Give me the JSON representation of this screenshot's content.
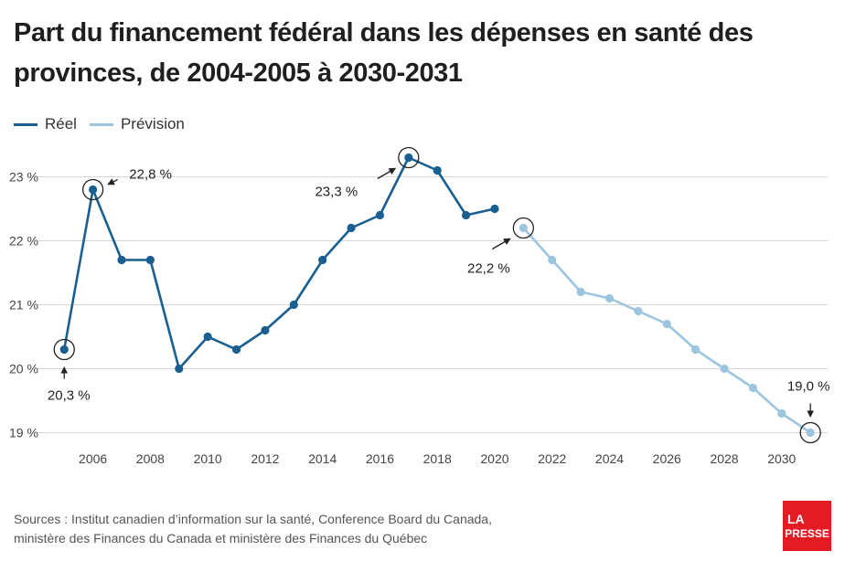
{
  "title": "Part du financement fédéral dans les dépenses en santé des provinces, de 2004-2005 à 2030-2031",
  "legend": [
    {
      "label": "Réel",
      "color": "#1a5f91"
    },
    {
      "label": "Prévision",
      "color": "#9cc5e0"
    }
  ],
  "sources": {
    "line1": "Sources : Institut canadien d’information sur la santé, Conference Board du Canada,",
    "line2": "ministère des Finances du Canada et ministère des Finances du Québec"
  },
  "logo": {
    "line1": "LA",
    "line2": "PRESSE",
    "color": "#e31b23"
  },
  "chart_data": {
    "type": "line",
    "x": [
      2005,
      2006,
      2007,
      2008,
      2009,
      2010,
      2011,
      2012,
      2013,
      2014,
      2015,
      2016,
      2017,
      2018,
      2019,
      2020,
      2021,
      2022,
      2023,
      2024,
      2025,
      2026,
      2027,
      2028,
      2029,
      2030,
      2031
    ],
    "series": [
      {
        "name": "Réel",
        "color": "#1a5f91",
        "x": [
          2005,
          2006,
          2007,
          2008,
          2009,
          2010,
          2011,
          2012,
          2013,
          2014,
          2015,
          2016,
          2017,
          2018,
          2019,
          2020
        ],
        "values": [
          20.3,
          22.8,
          21.7,
          21.7,
          20.0,
          20.5,
          20.3,
          20.6,
          21.0,
          21.7,
          22.2,
          22.4,
          23.3,
          23.1,
          22.4,
          22.5
        ]
      },
      {
        "name": "Prévision",
        "color": "#9cc5e0",
        "x": [
          2021,
          2022,
          2023,
          2024,
          2025,
          2026,
          2027,
          2028,
          2029,
          2030,
          2031
        ],
        "values": [
          22.2,
          21.7,
          21.2,
          21.1,
          20.9,
          20.7,
          20.3,
          20.0,
          19.7,
          19.3,
          19.0
        ]
      }
    ],
    "xticks": [
      2006,
      2008,
      2010,
      2012,
      2014,
      2016,
      2018,
      2020,
      2022,
      2024,
      2026,
      2028,
      2030
    ],
    "yticks": [
      19,
      20,
      21,
      22,
      23
    ],
    "ytick_labels": [
      "19 %",
      "20 %",
      "21 %",
      "22 %",
      "23 %"
    ],
    "xlim": [
      2004.1,
      2031.6
    ],
    "ylim": [
      18.85,
      23.55
    ],
    "grid": true,
    "legend_position": "top-left",
    "annotations": [
      {
        "x": 2005,
        "y": 20.3,
        "label": "20,3 %",
        "arrow": "up"
      },
      {
        "x": 2006,
        "y": 22.8,
        "label": "22,8 %",
        "arrow": "left"
      },
      {
        "x": 2017,
        "y": 23.3,
        "label": "23,3 %",
        "arrow": "up-right"
      },
      {
        "x": 2021,
        "y": 22.2,
        "label": "22,2 %",
        "arrow": "up-right"
      },
      {
        "x": 2031,
        "y": 19.0,
        "label": "19,0 %",
        "arrow": "down"
      }
    ]
  }
}
